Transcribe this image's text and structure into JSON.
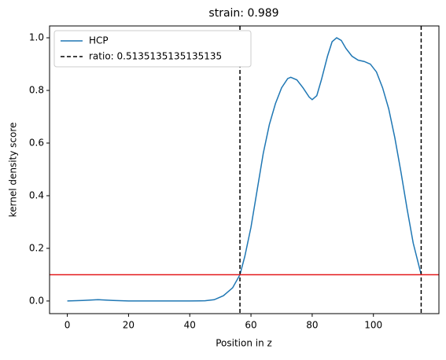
{
  "chart_data": {
    "type": "line",
    "title": "strain: 0.989",
    "xlabel": "Position in z",
    "ylabel": "kernel density score",
    "x": [
      0,
      5,
      10,
      15,
      20,
      30,
      40,
      45,
      48,
      51,
      54,
      56.4,
      58,
      60,
      62,
      64,
      66,
      68,
      70,
      72,
      73,
      75,
      77,
      79,
      80,
      81.5,
      83,
      85,
      86.5,
      88,
      89.5,
      91,
      93,
      95,
      97,
      99,
      101,
      103,
      105,
      107,
      109,
      111,
      113,
      115.6
    ],
    "series": [
      {
        "name": "HCP",
        "color": "#1f77b4",
        "values": [
          0,
          0.002,
          0.005,
          0.002,
          0,
          0,
          0,
          0.001,
          0.005,
          0.02,
          0.05,
          0.1,
          0.17,
          0.28,
          0.42,
          0.56,
          0.67,
          0.75,
          0.81,
          0.845,
          0.85,
          0.84,
          0.81,
          0.775,
          0.765,
          0.78,
          0.84,
          0.93,
          0.985,
          1.0,
          0.99,
          0.96,
          0.93,
          0.915,
          0.91,
          0.9,
          0.87,
          0.81,
          0.73,
          0.62,
          0.49,
          0.35,
          0.22,
          0.1
        ]
      }
    ],
    "vlines": {
      "name": "ratio: 0.5135135135135135",
      "color": "#000000",
      "x": [
        56.4,
        115.6
      ]
    },
    "hline": {
      "value": 0.1,
      "color": "#e41a1c"
    },
    "xlim": [
      -5.8,
      121.4
    ],
    "ylim": [
      -0.048,
      1.045
    ],
    "xticks": [
      0,
      20,
      40,
      60,
      80,
      100
    ],
    "yticks": [
      {
        "value": 0,
        "label": "0.0"
      },
      {
        "value": 0.2,
        "label": "0.2"
      },
      {
        "value": 0.4,
        "label": "0.4"
      },
      {
        "value": 0.6,
        "label": "0.6"
      },
      {
        "value": 0.8,
        "label": "0.8"
      },
      {
        "value": 1,
        "label": "1.0"
      }
    ],
    "legend": "upper left"
  }
}
